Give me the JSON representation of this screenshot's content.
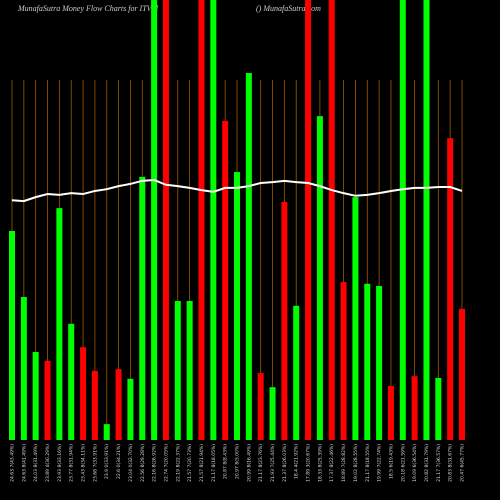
{
  "chart_data": {
    "type": "bar",
    "title": "MunafaSutra  Money Flow  Charts for ITVM",
    "subtitle": "() MunafaSutra.com",
    "categories": [
      "24.63 7(43.49%)",
      "24.63 8(41.49%)",
      "24.03 8(31.49%)",
      "23.89 4(30.29%)",
      "23.93 8(33.16%)",
      "23.77 8(31.94%)",
      "23.43 8(34.11%)",
      "23.68 7(33.91%)",
      "23.9 0(33.91%)",
      "22.6 0(34.21%)",
      "23.04 0(32.70%)",
      "22.56 8(29.28%)",
      "22.16 8(26.92%)",
      "22.74 7(20.05%)",
      "22.19 8(22.37%)",
      "21.57 7(20.73%)",
      "21.57 8(21.94%)",
      "21.17 8(18.05%)",
      "20.87 8(8.43%)",
      "20.97 8(5.00%)",
      "20.99 8(16.49%)",
      "21.17 8(23.76%)",
      "21.93 7(25.44%)",
      "21.37 8(26.03%)",
      "18.4 4(21.92%)",
      "17.89 3(20.67%)",
      "18.33 8(25.39%)",
      "17.37 8(22.46%)",
      "18.89 7(28.82%)",
      "19.02 8(28.55%)",
      "21.17 8(18.55%)",
      "19.99 7(22.74%)",
      "18.5 6(19.43%)",
      "20.18 6(21.59%)",
      "19.09 6(36.54%)",
      "20.82 8(31.79%)",
      "21.17 7(36.57%)",
      "20.83 8(31.67%)",
      "20.47 6(45.77%)"
    ],
    "values": [
      47.5,
      32.5,
      20,
      18,
      52.7,
      26.4,
      21.1,
      15.7,
      3.6,
      16.1,
      13.9,
      59.8,
      100,
      100,
      31.6,
      31.6,
      100,
      100,
      72.5,
      60.9,
      83.4,
      15.2,
      12,
      54.1,
      30.5,
      100,
      73.6,
      100,
      35.9,
      55.2,
      35.5,
      35,
      12.3,
      100,
      14.5,
      100,
      14.1,
      68.6,
      29.8
    ],
    "colors": [
      "#00ff00",
      "#00ff00",
      "#00ff00",
      "#ff0000",
      "#00ff00",
      "#00ff00",
      "#ff0000",
      "#ff0000",
      "#00ff00",
      "#ff0000",
      "#00ff00",
      "#00ff00",
      "#00ff00",
      "#ff0000",
      "#00ff00",
      "#00ff00",
      "#ff0000",
      "#00ff00",
      "#ff0000",
      "#00ff00",
      "#00ff00",
      "#ff0000",
      "#00ff00",
      "#ff0000",
      "#00ff00",
      "#ff0000",
      "#00ff00",
      "#ff0000",
      "#ff0000",
      "#00ff00",
      "#00ff00",
      "#00ff00",
      "#ff0000",
      "#00ff00",
      "#ff0000",
      "#00ff00",
      "#00ff00",
      "#ff0000",
      "#ff0000"
    ],
    "line": {
      "color": "#ffffff",
      "values": [
        54.5,
        54.3,
        55.2,
        55.9,
        55.7,
        56.1,
        55.9,
        56.6,
        57,
        57.7,
        58.2,
        58.9,
        59.1,
        58,
        57.7,
        57.3,
        56.8,
        56.4,
        57.3,
        57.3,
        57.7,
        58.4,
        58.6,
        58.9,
        58.6,
        58.4,
        57.7,
        56.8,
        56.1,
        55.5,
        55.7,
        56.1,
        56.6,
        57,
        57.3,
        57.3,
        57.5,
        57.5,
        56.6
      ]
    },
    "ylim": [
      0,
      100
    ],
    "grid_color": "#a05a00"
  }
}
